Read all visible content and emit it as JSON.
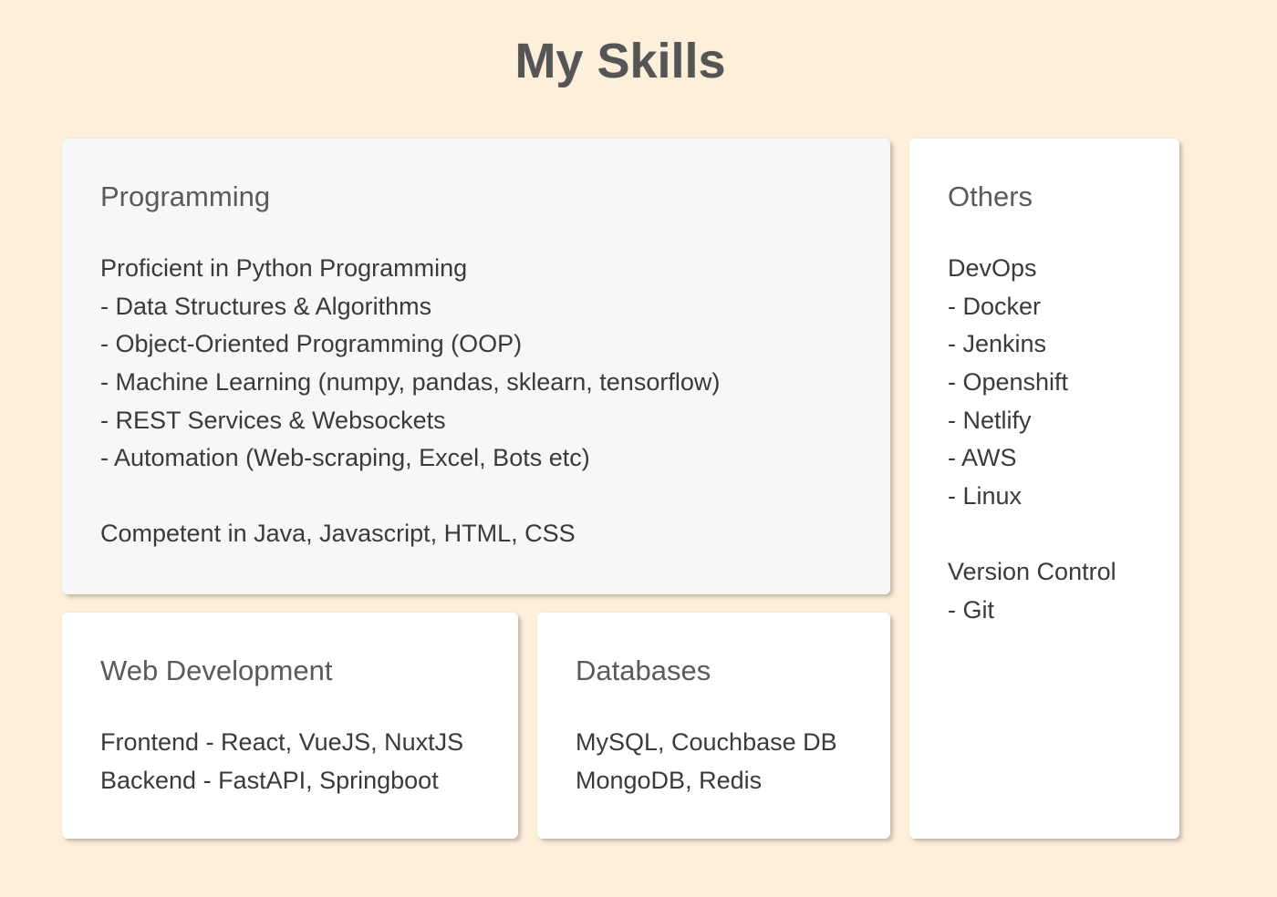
{
  "page": {
    "title": "My Skills"
  },
  "programming": {
    "heading": "Programming",
    "lines": [
      "Proficient in Python Programming",
      "- Data Structures & Algorithms",
      "- Object-Oriented Programming (OOP)",
      "- Machine Learning (numpy, pandas, sklearn, tensorflow)",
      "- REST Services & Websockets",
      "- Automation (Web-scraping, Excel, Bots etc)",
      "",
      "Competent in Java, Javascript, HTML, CSS"
    ]
  },
  "others": {
    "heading": "Others",
    "lines": [
      "DevOps",
      "- Docker",
      "- Jenkins",
      "- Openshift",
      "- Netlify",
      "- AWS",
      "- Linux",
      "",
      "Version Control",
      "- Git"
    ]
  },
  "web": {
    "heading": "Web Development",
    "lines": [
      "Frontend - React, VueJS, NuxtJS",
      "Backend - FastAPI, Springboot"
    ]
  },
  "databases": {
    "heading": "Databases",
    "lines": [
      "MySQL, Couchbase DB",
      "MongoDB, Redis"
    ]
  },
  "colors": {
    "background": "#fdefda",
    "card": "#ffffff",
    "card_highlight": "#f7f7f7",
    "title_text": "#555555",
    "body_text": "#3a3a3a"
  }
}
